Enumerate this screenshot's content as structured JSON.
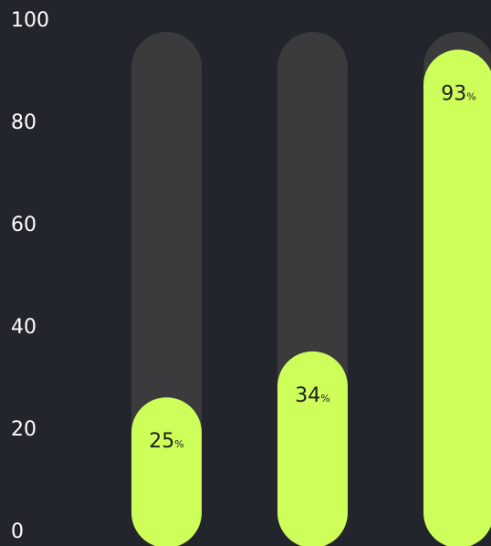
{
  "chart_data": {
    "type": "bar",
    "title": "",
    "xlabel": "",
    "ylabel": "",
    "ylim": [
      0,
      100
    ],
    "y_ticks": [
      "0",
      "20",
      "40",
      "60",
      "80",
      "100"
    ],
    "grid": false,
    "legend": "none",
    "series": [
      {
        "values": [
          25,
          34,
          93
        ],
        "value_labels": [
          "25",
          "34",
          "93"
        ],
        "unit": "%"
      }
    ],
    "colors": {
      "background": "#23252d",
      "track": "#3b3b3d",
      "bar": "#cdfe5a",
      "label": "#1c1d22",
      "axis_text": "#ffffff"
    }
  }
}
